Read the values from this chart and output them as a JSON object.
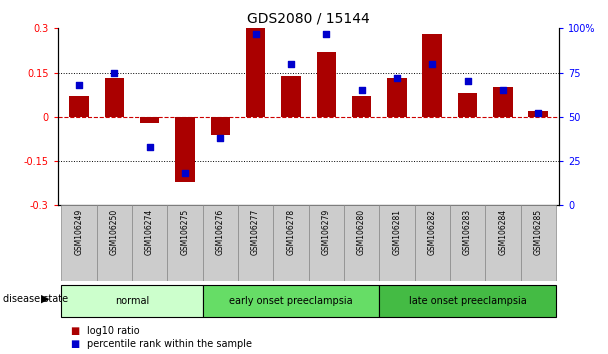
{
  "title": "GDS2080 / 15144",
  "samples": [
    "GSM106249",
    "GSM106250",
    "GSM106274",
    "GSM106275",
    "GSM106276",
    "GSM106277",
    "GSM106278",
    "GSM106279",
    "GSM106280",
    "GSM106281",
    "GSM106282",
    "GSM106283",
    "GSM106284",
    "GSM106285"
  ],
  "log10_ratio": [
    0.07,
    0.13,
    -0.02,
    -0.22,
    -0.06,
    0.3,
    0.14,
    0.22,
    0.07,
    0.13,
    0.28,
    0.08,
    0.1,
    0.02
  ],
  "percentile_rank": [
    68,
    75,
    33,
    18,
    38,
    97,
    80,
    97,
    65,
    72,
    80,
    70,
    65,
    52
  ],
  "groups": [
    {
      "label": "normal",
      "start": 0,
      "end": 4,
      "color": "#ccffcc"
    },
    {
      "label": "early onset preeclampsia",
      "start": 4,
      "end": 9,
      "color": "#66dd66"
    },
    {
      "label": "late onset preeclampsia",
      "start": 9,
      "end": 14,
      "color": "#44bb44"
    }
  ],
  "bar_color": "#aa0000",
  "dot_color": "#0000cc",
  "bar_width": 0.55,
  "ylim_left": [
    -0.3,
    0.3
  ],
  "ylim_right": [
    0,
    100
  ],
  "yticks_left": [
    -0.3,
    -0.15,
    0,
    0.15,
    0.3
  ],
  "yticks_right": [
    0,
    25,
    50,
    75,
    100
  ],
  "ytick_labels_right": [
    "0",
    "25",
    "50",
    "75",
    "100%"
  ],
  "ytick_labels_left": [
    "-0.3",
    "-0.15",
    "0",
    "0.15",
    "0.3"
  ],
  "hlines": [
    0.15,
    -0.15
  ],
  "zero_line_color": "#cc0000",
  "dotted_line_color": "#000000",
  "title_fontsize": 10,
  "tick_fontsize": 7,
  "bg_color": "#ffffff",
  "tick_bg_color": "#cccccc",
  "legend_log10": "log10 ratio",
  "legend_percentile": "percentile rank within the sample",
  "disease_state_label": "disease state"
}
